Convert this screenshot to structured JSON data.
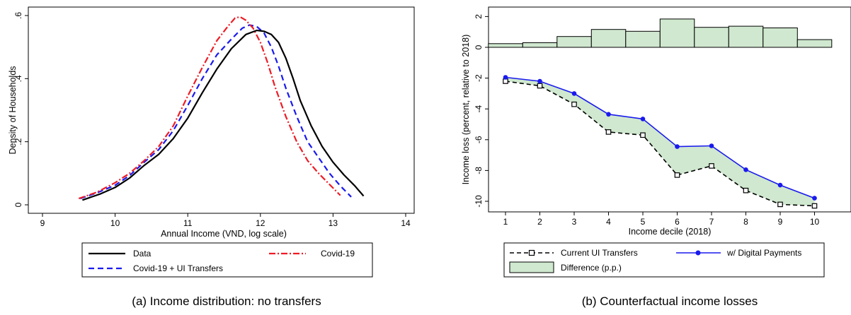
{
  "captions": {
    "left": "(a)  Income distribution: no transfers",
    "right": "(b)  Counterfactual income losses"
  },
  "chart_data": [
    {
      "type": "line",
      "xlabel": "Annual Income (VND, log scale)",
      "ylabel": "Density of Households",
      "xlim": [
        9,
        14
      ],
      "ylim": [
        0,
        0.6
      ],
      "x_ticks": [
        "9",
        "10",
        "11",
        "12",
        "13",
        "14"
      ],
      "y_ticks": [
        "0",
        ".2",
        ".4",
        ".6"
      ],
      "grid": false,
      "legend_position": "bottom",
      "series": [
        {
          "name": "Data",
          "color": "#000000",
          "dash": "solid",
          "points": [
            [
              9.55,
              0.015
            ],
            [
              9.8,
              0.035
            ],
            [
              10.0,
              0.055
            ],
            [
              10.2,
              0.085
            ],
            [
              10.4,
              0.125
            ],
            [
              10.6,
              0.16
            ],
            [
              10.8,
              0.21
            ],
            [
              11.0,
              0.275
            ],
            [
              11.2,
              0.355
            ],
            [
              11.4,
              0.43
            ],
            [
              11.6,
              0.495
            ],
            [
              11.8,
              0.54
            ],
            [
              11.95,
              0.553
            ],
            [
              12.05,
              0.55
            ],
            [
              12.15,
              0.54
            ],
            [
              12.25,
              0.515
            ],
            [
              12.35,
              0.465
            ],
            [
              12.45,
              0.4
            ],
            [
              12.55,
              0.33
            ],
            [
              12.7,
              0.25
            ],
            [
              12.85,
              0.185
            ],
            [
              13.0,
              0.135
            ],
            [
              13.15,
              0.095
            ],
            [
              13.3,
              0.06
            ],
            [
              13.42,
              0.028
            ]
          ]
        },
        {
          "name": "Covid-19",
          "color": "#ee1c25",
          "dash": "dashdot",
          "points": [
            [
              9.5,
              0.02
            ],
            [
              9.75,
              0.04
            ],
            [
              10.0,
              0.07
            ],
            [
              10.2,
              0.1
            ],
            [
              10.4,
              0.14
            ],
            [
              10.6,
              0.185
            ],
            [
              10.8,
              0.25
            ],
            [
              11.0,
              0.345
            ],
            [
              11.2,
              0.435
            ],
            [
              11.4,
              0.52
            ],
            [
              11.55,
              0.565
            ],
            [
              11.65,
              0.592
            ],
            [
              11.72,
              0.596
            ],
            [
              11.8,
              0.585
            ],
            [
              11.9,
              0.56
            ],
            [
              12.0,
              0.515
            ],
            [
              12.1,
              0.45
            ],
            [
              12.2,
              0.375
            ],
            [
              12.35,
              0.28
            ],
            [
              12.5,
              0.2
            ],
            [
              12.65,
              0.14
            ],
            [
              12.8,
              0.1
            ],
            [
              12.95,
              0.065
            ],
            [
              13.1,
              0.03
            ]
          ]
        },
        {
          "name": "Covid-19 + UI Transfers",
          "color": "#1a1aee",
          "dash": "dash",
          "points": [
            [
              9.52,
              0.02
            ],
            [
              9.75,
              0.038
            ],
            [
              10.0,
              0.062
            ],
            [
              10.2,
              0.093
            ],
            [
              10.4,
              0.135
            ],
            [
              10.6,
              0.175
            ],
            [
              10.8,
              0.235
            ],
            [
              11.0,
              0.315
            ],
            [
              11.2,
              0.4
            ],
            [
              11.4,
              0.475
            ],
            [
              11.6,
              0.525
            ],
            [
              11.75,
              0.56
            ],
            [
              11.85,
              0.57
            ],
            [
              11.95,
              0.565
            ],
            [
              12.05,
              0.545
            ],
            [
              12.15,
              0.5
            ],
            [
              12.25,
              0.44
            ],
            [
              12.35,
              0.37
            ],
            [
              12.5,
              0.28
            ],
            [
              12.65,
              0.2
            ],
            [
              12.8,
              0.15
            ],
            [
              12.95,
              0.1
            ],
            [
              13.1,
              0.06
            ],
            [
              13.25,
              0.025
            ]
          ]
        }
      ]
    },
    {
      "type": "bar+line",
      "xlabel": "Income decile (2018)",
      "ylabel": "Income loss (percent, relative to 2018)",
      "xlim": [
        0.5,
        10.5
      ],
      "ylim": [
        -10.8,
        2.4
      ],
      "x_ticks": [
        "1",
        "2",
        "3",
        "4",
        "5",
        "6",
        "7",
        "8",
        "9",
        "10"
      ],
      "y_ticks": [
        "2",
        "0",
        "-2",
        "-4",
        "-6",
        "-8",
        "-10"
      ],
      "grid": false,
      "legend_position": "bottom",
      "categories": [
        1,
        2,
        3,
        4,
        5,
        6,
        7,
        8,
        9,
        10
      ],
      "bars": {
        "name": "Difference (p.p.)",
        "color": "#cfe8cf",
        "values": [
          0.24,
          0.3,
          0.7,
          1.16,
          1.04,
          1.84,
          1.3,
          1.37,
          1.26,
          0.5
        ]
      },
      "series": [
        {
          "name": "Current UI Transfers",
          "color": "#000000",
          "dash": "dash",
          "marker": "square",
          "values": [
            -2.2,
            -2.5,
            -3.7,
            -5.5,
            -5.7,
            -8.3,
            -7.7,
            -9.3,
            -10.2,
            -10.3
          ]
        },
        {
          "name": "w/ Digital Payments",
          "color": "#1a1aee",
          "dash": "solid",
          "marker": "circle",
          "values": [
            -1.95,
            -2.2,
            -3.0,
            -4.35,
            -4.65,
            -6.45,
            -6.4,
            -7.95,
            -8.95,
            -9.8
          ]
        }
      ],
      "difference_fill_color": "#cfe8cf"
    }
  ]
}
